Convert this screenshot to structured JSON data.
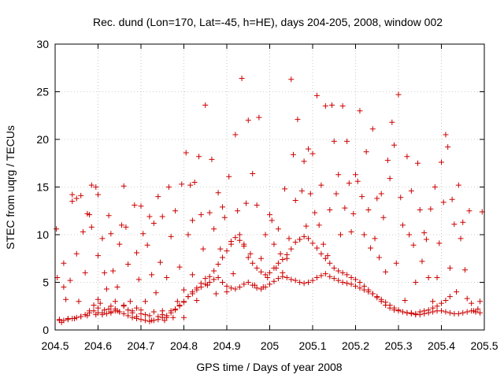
{
  "chart_data": {
    "type": "scatter",
    "title": "Rec. dund (Lon=170, Lat=-45, h=HE), days 204-205, 2008, window 002",
    "xlabel": "GPS time / Days of year 2008",
    "ylabel": "STEC from uqrg / TECUs",
    "xlim": [
      204.5,
      205.5
    ],
    "ylim": [
      0,
      30
    ],
    "xticks": [
      204.5,
      204.6,
      204.7,
      204.8,
      204.9,
      205.0,
      205.1,
      205.2,
      205.3,
      205.4,
      205.5
    ],
    "xtick_labels": [
      "204.5",
      "204.6",
      "204.7",
      "204.8",
      "204.9",
      "205",
      "205.1",
      "205.2",
      "205.3",
      "205.4",
      "205.5"
    ],
    "yticks": [
      0,
      5,
      10,
      15,
      20,
      25,
      30
    ],
    "ytick_labels": [
      "0",
      "5",
      "10",
      "15",
      "20",
      "25",
      "30"
    ],
    "grid": true,
    "marker": "+",
    "color": "#cc0000",
    "points": [
      [
        204.503,
        10.6
      ],
      [
        204.505,
        5.5
      ],
      [
        204.51,
        1.0
      ],
      [
        204.515,
        0.8
      ],
      [
        204.52,
        7.0
      ],
      [
        204.52,
        4.5
      ],
      [
        204.525,
        3.2
      ],
      [
        204.53,
        1.2
      ],
      [
        204.535,
        5.2
      ],
      [
        204.54,
        14.2
      ],
      [
        204.54,
        13.5
      ],
      [
        204.545,
        1.2
      ],
      [
        204.55,
        13.8
      ],
      [
        204.55,
        8.0
      ],
      [
        204.555,
        3.0
      ],
      [
        204.56,
        1.4
      ],
      [
        204.56,
        14.1
      ],
      [
        204.565,
        10.3
      ],
      [
        204.57,
        6.0
      ],
      [
        204.575,
        12.2
      ],
      [
        204.575,
        1.5
      ],
      [
        204.58,
        2.0
      ],
      [
        204.58,
        12.1
      ],
      [
        204.585,
        15.2
      ],
      [
        204.585,
        10.8
      ],
      [
        204.59,
        2.6
      ],
      [
        204.595,
        1.6
      ],
      [
        204.595,
        15.0
      ],
      [
        204.6,
        14.2
      ],
      [
        204.6,
        7.8
      ],
      [
        204.605,
        2.8
      ],
      [
        204.61,
        1.8
      ],
      [
        204.61,
        9.6
      ],
      [
        204.615,
        6.0
      ],
      [
        204.62,
        4.3
      ],
      [
        204.625,
        2.2
      ],
      [
        204.625,
        12.0
      ],
      [
        204.63,
        1.8
      ],
      [
        204.63,
        10.1
      ],
      [
        204.635,
        6.2
      ],
      [
        204.64,
        3.0
      ],
      [
        204.645,
        4.5
      ],
      [
        204.645,
        2.0
      ],
      [
        204.65,
        9.0
      ],
      [
        204.655,
        11.0
      ],
      [
        204.66,
        2.5
      ],
      [
        204.66,
        15.1
      ],
      [
        204.665,
        10.8
      ],
      [
        204.67,
        6.9
      ],
      [
        204.675,
        3.0
      ],
      [
        204.68,
        2.0
      ],
      [
        204.685,
        13.1
      ],
      [
        204.69,
        8.1
      ],
      [
        204.69,
        1.4
      ],
      [
        204.695,
        5.3
      ],
      [
        204.7,
        13.0
      ],
      [
        204.7,
        2.1
      ],
      [
        204.705,
        10.1
      ],
      [
        204.71,
        3.0
      ],
      [
        204.715,
        8.9
      ],
      [
        204.72,
        11.9
      ],
      [
        204.725,
        5.8
      ],
      [
        204.725,
        1.0
      ],
      [
        204.73,
        11.2
      ],
      [
        204.735,
        3.9
      ],
      [
        204.74,
        14.0
      ],
      [
        204.745,
        7.1
      ],
      [
        204.75,
        2.0
      ],
      [
        204.75,
        11.9
      ],
      [
        204.755,
        1.0
      ],
      [
        204.76,
        5.5
      ],
      [
        204.765,
        15.0
      ],
      [
        204.77,
        9.8
      ],
      [
        204.775,
        1.3
      ],
      [
        204.78,
        12.5
      ],
      [
        204.785,
        3.0
      ],
      [
        204.79,
        6.6
      ],
      [
        204.795,
        15.3
      ],
      [
        204.8,
        4.2
      ],
      [
        204.8,
        1.3
      ],
      [
        204.805,
        18.6
      ],
      [
        204.81,
        10.0
      ],
      [
        204.815,
        15.2
      ],
      [
        204.82,
        11.5
      ],
      [
        204.82,
        5.8
      ],
      [
        204.825,
        15.5
      ],
      [
        204.83,
        3.1
      ],
      [
        204.835,
        18.2
      ],
      [
        204.84,
        12.1
      ],
      [
        204.845,
        8.5
      ],
      [
        204.85,
        23.6
      ],
      [
        204.855,
        4.7
      ],
      [
        204.86,
        12.3
      ],
      [
        204.865,
        17.9
      ],
      [
        204.87,
        10.6
      ],
      [
        204.875,
        3.8
      ],
      [
        204.88,
        14.4
      ],
      [
        204.885,
        8.5
      ],
      [
        204.89,
        12.9
      ],
      [
        204.895,
        11.8
      ],
      [
        204.9,
        4.0
      ],
      [
        204.905,
        16.1
      ],
      [
        204.91,
        9.3
      ],
      [
        204.915,
        5.9
      ],
      [
        204.92,
        20.5
      ],
      [
        204.925,
        12.5
      ],
      [
        204.93,
        10.0
      ],
      [
        204.935,
        26.4
      ],
      [
        204.94,
        9.0
      ],
      [
        204.945,
        13.3
      ],
      [
        204.95,
        22.0
      ],
      [
        204.955,
        8.0
      ],
      [
        204.96,
        16.4
      ],
      [
        204.965,
        4.7
      ],
      [
        204.97,
        13.1
      ],
      [
        204.975,
        22.3
      ],
      [
        204.98,
        7.5
      ],
      [
        204.985,
        4.5
      ],
      [
        204.99,
        10.0
      ],
      [
        204.995,
        5.5
      ],
      [
        205.0,
        12.1
      ],
      [
        205.005,
        11.5
      ],
      [
        205.01,
        9.0
      ],
      [
        205.015,
        6.5
      ],
      [
        205.02,
        10.6
      ],
      [
        205.025,
        8.0
      ],
      [
        205.03,
        6.0
      ],
      [
        205.035,
        14.8
      ],
      [
        205.04,
        7.5
      ],
      [
        205.045,
        9.6
      ],
      [
        205.05,
        26.3
      ],
      [
        205.055,
        18.4
      ],
      [
        205.06,
        13.6
      ],
      [
        205.065,
        22.1
      ],
      [
        205.07,
        9.5
      ],
      [
        205.075,
        14.6
      ],
      [
        205.08,
        17.7
      ],
      [
        205.085,
        10.9
      ],
      [
        205.09,
        19.0
      ],
      [
        205.095,
        14.3
      ],
      [
        205.1,
        18.5
      ],
      [
        205.105,
        12.3
      ],
      [
        205.11,
        24.6
      ],
      [
        205.115,
        11.0
      ],
      [
        205.12,
        15.2
      ],
      [
        205.125,
        9.0
      ],
      [
        205.13,
        23.5
      ],
      [
        205.135,
        7.8
      ],
      [
        205.14,
        12.6
      ],
      [
        205.145,
        23.6
      ],
      [
        205.15,
        19.8
      ],
      [
        205.155,
        14.3
      ],
      [
        205.16,
        16.3
      ],
      [
        205.165,
        10.0
      ],
      [
        205.17,
        23.5
      ],
      [
        205.175,
        12.8
      ],
      [
        205.18,
        19.8
      ],
      [
        205.185,
        15.4
      ],
      [
        205.19,
        10.3
      ],
      [
        205.195,
        12.2
      ],
      [
        205.2,
        16.3
      ],
      [
        205.205,
        15.6
      ],
      [
        205.21,
        23.0
      ],
      [
        205.215,
        14.0
      ],
      [
        205.22,
        10.0
      ],
      [
        205.225,
        18.7
      ],
      [
        205.23,
        12.6
      ],
      [
        205.235,
        8.6
      ],
      [
        205.24,
        21.1
      ],
      [
        205.245,
        9.6
      ],
      [
        205.25,
        13.8
      ],
      [
        205.255,
        7.6
      ],
      [
        205.26,
        14.3
      ],
      [
        205.265,
        11.8
      ],
      [
        205.27,
        6.1
      ],
      [
        205.275,
        17.8
      ],
      [
        205.28,
        15.9
      ],
      [
        205.285,
        21.8
      ],
      [
        205.29,
        19.4
      ],
      [
        205.295,
        7.0
      ],
      [
        205.3,
        24.7
      ],
      [
        205.305,
        13.9
      ],
      [
        205.31,
        11.0
      ],
      [
        205.315,
        3.1
      ],
      [
        205.32,
        18.2
      ],
      [
        205.325,
        10.0
      ],
      [
        205.33,
        14.6
      ],
      [
        205.335,
        8.9
      ],
      [
        205.34,
        5.0
      ],
      [
        205.345,
        17.5
      ],
      [
        205.35,
        12.6
      ],
      [
        205.355,
        7.2
      ],
      [
        205.36,
        10.2
      ],
      [
        205.365,
        9.5
      ],
      [
        205.37,
        5.5
      ],
      [
        205.375,
        12.7
      ],
      [
        205.38,
        3.0
      ],
      [
        205.385,
        15.0
      ],
      [
        205.39,
        5.5
      ],
      [
        205.395,
        9.1
      ],
      [
        205.4,
        17.6
      ],
      [
        205.405,
        13.4
      ],
      [
        205.41,
        20.5
      ],
      [
        205.415,
        19.2
      ],
      [
        205.42,
        6.5
      ],
      [
        205.425,
        13.7
      ],
      [
        205.43,
        11.1
      ],
      [
        205.435,
        4.0
      ],
      [
        205.44,
        15.2
      ],
      [
        205.445,
        9.6
      ],
      [
        205.45,
        11.3
      ],
      [
        205.455,
        6.3
      ],
      [
        205.46,
        3.3
      ],
      [
        205.465,
        12.5
      ],
      [
        205.47,
        2.8
      ],
      [
        205.475,
        2.0
      ],
      [
        205.48,
        1.9
      ],
      [
        205.485,
        2.2
      ],
      [
        205.49,
        3.0
      ],
      [
        205.495,
        12.4
      ],
      [
        204.6,
        3.2
      ],
      [
        204.6,
        2.3
      ],
      [
        204.615,
        2.1
      ],
      [
        204.63,
        2.5
      ],
      [
        204.64,
        2.2
      ],
      [
        204.65,
        1.9
      ],
      [
        204.66,
        2.6
      ],
      [
        204.67,
        2.1
      ],
      [
        204.68,
        1.8
      ],
      [
        204.69,
        2.3
      ],
      [
        204.7,
        1.7
      ],
      [
        204.71,
        1.6
      ],
      [
        204.72,
        1.5
      ],
      [
        204.73,
        1.9
      ],
      [
        204.74,
        1.4
      ],
      [
        204.75,
        1.6
      ],
      [
        204.76,
        1.3
      ],
      [
        204.77,
        2.0
      ],
      [
        204.78,
        2.2
      ],
      [
        204.79,
        2.6
      ],
      [
        204.8,
        2.9
      ],
      [
        204.81,
        3.5
      ],
      [
        204.82,
        3.8
      ],
      [
        204.83,
        4.4
      ],
      [
        204.84,
        4.9
      ],
      [
        204.85,
        5.4
      ],
      [
        204.86,
        5.6
      ],
      [
        204.87,
        6.2
      ],
      [
        204.88,
        6.9
      ],
      [
        204.89,
        7.6
      ],
      [
        204.9,
        8.3
      ],
      [
        204.91,
        9.0
      ],
      [
        204.92,
        9.7
      ],
      [
        204.93,
        9.4
      ],
      [
        204.94,
        8.8
      ],
      [
        204.95,
        7.6
      ],
      [
        204.96,
        7.0
      ],
      [
        204.97,
        6.5
      ],
      [
        204.98,
        6.1
      ],
      [
        204.99,
        5.8
      ],
      [
        205.0,
        6.0
      ],
      [
        205.01,
        6.5
      ],
      [
        205.02,
        7.0
      ],
      [
        205.03,
        7.4
      ],
      [
        205.04,
        7.9
      ],
      [
        205.05,
        8.5
      ],
      [
        205.06,
        9.2
      ],
      [
        205.07,
        9.5
      ],
      [
        205.08,
        9.8
      ],
      [
        205.09,
        9.6
      ],
      [
        205.1,
        9.1
      ],
      [
        205.11,
        8.6
      ],
      [
        205.12,
        8.0
      ],
      [
        205.13,
        7.5
      ],
      [
        205.14,
        7.0
      ],
      [
        205.15,
        6.5
      ],
      [
        205.16,
        6.2
      ],
      [
        205.17,
        6.0
      ],
      [
        205.18,
        5.8
      ],
      [
        205.19,
        5.5
      ],
      [
        205.2,
        5.3
      ],
      [
        205.21,
        5.0
      ],
      [
        205.22,
        4.6
      ],
      [
        205.23,
        4.2
      ],
      [
        205.24,
        3.8
      ],
      [
        205.25,
        3.4
      ],
      [
        205.26,
        3.0
      ],
      [
        205.27,
        2.6
      ],
      [
        205.28,
        2.3
      ],
      [
        205.29,
        2.1
      ],
      [
        205.3,
        2.0
      ],
      [
        205.31,
        1.9
      ],
      [
        205.32,
        1.8
      ],
      [
        205.33,
        1.8
      ],
      [
        205.34,
        1.7
      ],
      [
        205.35,
        1.9
      ],
      [
        205.36,
        2.0
      ],
      [
        205.37,
        2.1
      ],
      [
        205.38,
        2.3
      ],
      [
        205.39,
        2.5
      ],
      [
        205.4,
        2.8
      ],
      [
        205.41,
        3.1
      ],
      [
        205.42,
        3.5
      ],
      [
        204.51,
        1.1
      ],
      [
        204.52,
        1.0
      ],
      [
        204.53,
        1.1
      ],
      [
        204.54,
        1.2
      ],
      [
        204.55,
        1.3
      ],
      [
        204.56,
        1.4
      ],
      [
        204.57,
        1.6
      ],
      [
        204.58,
        1.8
      ],
      [
        204.59,
        2.0
      ],
      [
        204.6,
        1.8
      ],
      [
        204.61,
        1.6
      ],
      [
        204.62,
        1.7
      ],
      [
        204.63,
        1.9
      ],
      [
        204.64,
        2.0
      ],
      [
        204.65,
        1.9
      ],
      [
        204.66,
        1.7
      ],
      [
        204.67,
        1.5
      ],
      [
        204.68,
        1.3
      ],
      [
        204.69,
        1.2
      ],
      [
        204.7,
        1.1
      ],
      [
        204.71,
        1.0
      ],
      [
        204.72,
        0.9
      ],
      [
        204.73,
        1.0
      ],
      [
        204.74,
        1.1
      ],
      [
        204.75,
        1.3
      ],
      [
        204.76,
        1.5
      ],
      [
        204.77,
        1.8
      ],
      [
        204.78,
        2.1
      ],
      [
        204.79,
        2.5
      ],
      [
        204.8,
        3.0
      ],
      [
        204.81,
        3.5
      ],
      [
        204.82,
        4.0
      ],
      [
        204.83,
        4.2
      ],
      [
        204.84,
        4.5
      ],
      [
        204.85,
        4.8
      ],
      [
        204.86,
        5.0
      ],
      [
        204.87,
        5.3
      ],
      [
        204.88,
        5.5
      ],
      [
        204.89,
        5.0
      ],
      [
        204.9,
        4.6
      ],
      [
        204.91,
        4.4
      ],
      [
        204.92,
        4.3
      ],
      [
        204.93,
        4.5
      ],
      [
        204.94,
        4.8
      ],
      [
        204.95,
        5.0
      ],
      [
        204.96,
        4.7
      ],
      [
        204.97,
        4.4
      ],
      [
        204.98,
        4.3
      ],
      [
        204.99,
        4.5
      ],
      [
        205.0,
        4.8
      ],
      [
        205.01,
        5.1
      ],
      [
        205.02,
        5.4
      ],
      [
        205.03,
        5.6
      ],
      [
        205.04,
        5.5
      ],
      [
        205.05,
        5.3
      ],
      [
        205.06,
        5.2
      ],
      [
        205.07,
        5.0
      ],
      [
        205.08,
        4.9
      ],
      [
        205.09,
        5.0
      ],
      [
        205.1,
        5.2
      ],
      [
        205.11,
        5.5
      ],
      [
        205.12,
        5.7
      ],
      [
        205.13,
        5.9
      ],
      [
        205.14,
        5.6
      ],
      [
        205.15,
        5.4
      ],
      [
        205.16,
        5.2
      ],
      [
        205.17,
        5.0
      ],
      [
        205.18,
        4.9
      ],
      [
        205.19,
        4.8
      ],
      [
        205.2,
        4.6
      ],
      [
        205.21,
        4.4
      ],
      [
        205.22,
        4.2
      ],
      [
        205.23,
        4.0
      ],
      [
        205.24,
        3.8
      ],
      [
        205.25,
        3.5
      ],
      [
        205.26,
        3.2
      ],
      [
        205.27,
        2.9
      ],
      [
        205.28,
        2.6
      ],
      [
        205.29,
        2.3
      ],
      [
        205.3,
        2.1
      ],
      [
        205.31,
        1.9
      ],
      [
        205.32,
        1.8
      ],
      [
        205.33,
        1.7
      ],
      [
        205.34,
        1.6
      ],
      [
        205.35,
        1.6
      ],
      [
        205.36,
        1.7
      ],
      [
        205.37,
        1.8
      ],
      [
        205.38,
        1.9
      ],
      [
        205.39,
        2.0
      ],
      [
        205.4,
        2.0
      ],
      [
        205.41,
        1.9
      ],
      [
        205.42,
        1.8
      ],
      [
        205.43,
        1.7
      ],
      [
        205.44,
        1.7
      ],
      [
        205.45,
        1.8
      ],
      [
        205.46,
        1.9
      ],
      [
        205.47,
        2.0
      ],
      [
        205.48,
        1.9
      ],
      [
        205.49,
        1.8
      ]
    ]
  }
}
